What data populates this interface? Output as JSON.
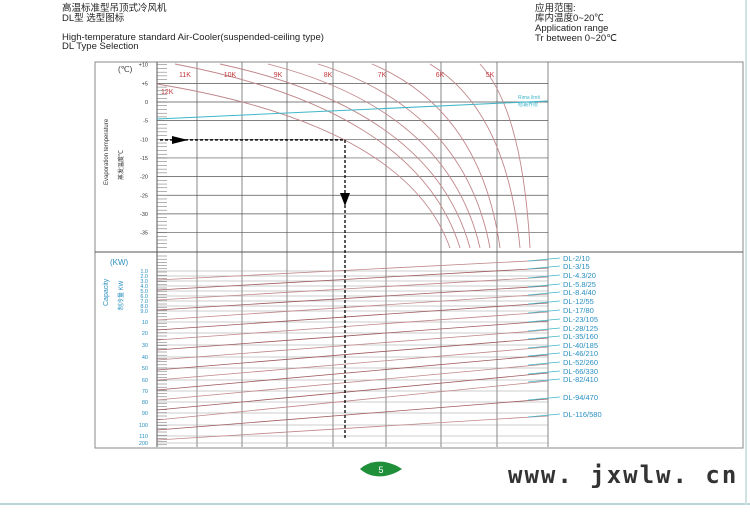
{
  "header": {
    "title_cn": "高温标准型吊顶式冷风机",
    "subtitle_cn": "DL型 选型图标",
    "title_en": "High-temperature standard Air-Cooler(suspended-ceiling type)",
    "subtitle_en": "DL Type Selection",
    "range_cn_label": "应用范围:",
    "range_cn": "库内温度0~20℃",
    "range_en_label": "Application range",
    "range_en": "Tr between 0~20℃"
  },
  "top_chart": {
    "unit": "(℃)",
    "ylabel_en": "Evaporation temperature",
    "ylabel_cn": "蒸发温度℃",
    "ticks": [
      "+10",
      "+5",
      "0",
      "-5",
      "-10",
      "-15",
      "-20",
      "-25",
      "-30",
      "-35"
    ],
    "curve_labels": [
      "11K",
      "10K",
      "9K",
      "8K",
      "7K",
      "6K",
      "5K",
      "12K"
    ],
    "limit_label_en": "Rima limit",
    "limit_label_cn": "结霜界限",
    "example_evap_temp": -10
  },
  "bottom_chart": {
    "unit": "(KW)",
    "ylabel_en": "Capacity",
    "ylabel_cn": "制冷量 KW",
    "ticks": [
      "1.0",
      "2.0",
      "3.0",
      "4.0",
      "5.0",
      "6.0",
      "7.0",
      "8.0",
      "9.0",
      "10",
      "20",
      "30",
      "40",
      "50",
      "60",
      "70",
      "80",
      "90",
      "100",
      "110",
      "200"
    ],
    "models": [
      "DL-2/10",
      "DL-3/15",
      "DL-4.3/20",
      "DL-5.8/25",
      "DL-8.4/40",
      "DL-12/55",
      "DL-17/80",
      "DL-23/105",
      "DL-28/125",
      "DL-35/160",
      "DL-40/185",
      "DL-46/210",
      "DL-52/260",
      "DL-66/330",
      "DL-82/410",
      "DL-94/470",
      "DL-116/580"
    ]
  },
  "footer": {
    "page_number": "5",
    "website": "www. jxwlw. cn"
  },
  "colors": {
    "curve": "#c0868a",
    "limit": "#3fb6c8",
    "label_blue": "#2a8fc0",
    "curve_label": "#c0393f",
    "grid": "#555555",
    "badge": "#1f8f3a"
  }
}
